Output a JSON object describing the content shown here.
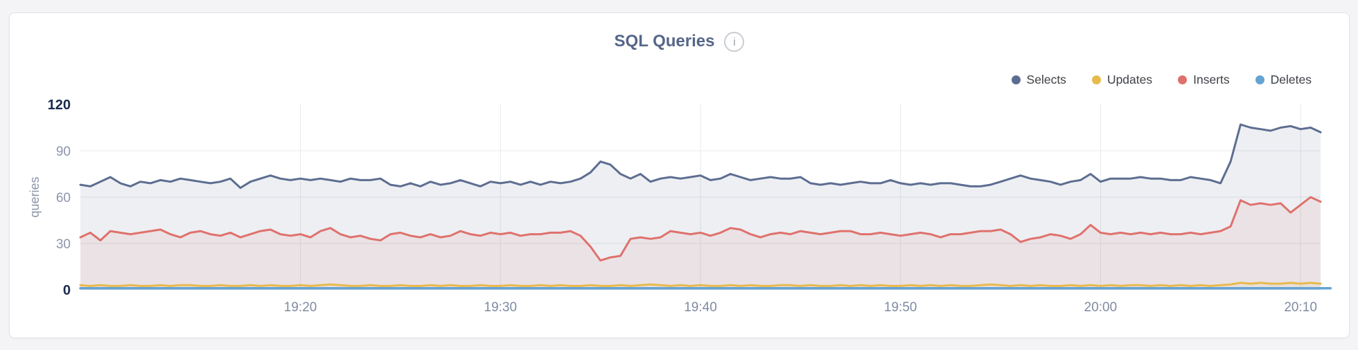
{
  "panel": {
    "title": "SQL Queries",
    "info_glyph": "i"
  },
  "legend": {
    "position": "top-right",
    "items": [
      {
        "label": "Selects",
        "color": "#5c6d90"
      },
      {
        "label": "Updates",
        "color": "#e7ba4e"
      },
      {
        "label": "Inserts",
        "color": "#df716c"
      },
      {
        "label": "Deletes",
        "color": "#65a3d3"
      }
    ]
  },
  "chart_data": {
    "type": "area",
    "title": "SQL Queries",
    "xlabel": "",
    "ylabel": "queries",
    "ylim": [
      0,
      120
    ],
    "y_ticks": [
      0,
      30,
      60,
      90,
      120
    ],
    "grid": true,
    "legend_position": "top-right",
    "x_start": "19:09",
    "x_end": "20:11",
    "x_interval_seconds": 30,
    "x_ticks": [
      "19:20",
      "19:30",
      "19:40",
      "19:50",
      "20:00",
      "20:10"
    ],
    "series": [
      {
        "name": "Selects",
        "color": "#5c6d90",
        "fill": "rgba(92,109,144,0.11)",
        "width": 3,
        "values": [
          68,
          67,
          70,
          73,
          69,
          67,
          70,
          69,
          71,
          70,
          72,
          71,
          70,
          69,
          70,
          72,
          66,
          70,
          72,
          74,
          72,
          71,
          72,
          71,
          72,
          71,
          70,
          72,
          71,
          71,
          72,
          68,
          67,
          69,
          67,
          70,
          68,
          69,
          71,
          69,
          67,
          70,
          69,
          70,
          68,
          70,
          68,
          70,
          69,
          70,
          72,
          76,
          83,
          81,
          75,
          72,
          75,
          70,
          72,
          73,
          72,
          73,
          74,
          71,
          72,
          75,
          73,
          71,
          72,
          73,
          72,
          72,
          73,
          69,
          68,
          69,
          68,
          69,
          70,
          69,
          69,
          71,
          69,
          68,
          69,
          68,
          69,
          69,
          68,
          67,
          67,
          68,
          70,
          72,
          74,
          72,
          71,
          70,
          68,
          70,
          71,
          75,
          70,
          72,
          72,
          72,
          73,
          72,
          72,
          71,
          71,
          73,
          72,
          71,
          69,
          83,
          107,
          105,
          104,
          103,
          105,
          106,
          104,
          105,
          102
        ]
      },
      {
        "name": "Inserts",
        "color": "#df716c",
        "fill": "rgba(223,113,108,0.10)",
        "width": 3,
        "values": [
          34,
          37,
          32,
          38,
          37,
          36,
          37,
          38,
          39,
          36,
          34,
          37,
          38,
          36,
          35,
          37,
          34,
          36,
          38,
          39,
          36,
          35,
          36,
          34,
          38,
          40,
          36,
          34,
          35,
          33,
          32,
          36,
          37,
          35,
          34,
          36,
          34,
          35,
          38,
          36,
          35,
          37,
          36,
          37,
          35,
          36,
          36,
          37,
          37,
          38,
          35,
          28,
          19,
          21,
          22,
          33,
          34,
          33,
          34,
          38,
          37,
          36,
          37,
          35,
          37,
          40,
          39,
          36,
          34,
          36,
          37,
          36,
          38,
          37,
          36,
          37,
          38,
          38,
          36,
          36,
          37,
          36,
          35,
          36,
          37,
          36,
          34,
          36,
          36,
          37,
          38,
          38,
          39,
          36,
          31,
          33,
          34,
          36,
          35,
          33,
          36,
          42,
          37,
          36,
          37,
          36,
          37,
          36,
          37,
          36,
          36,
          37,
          36,
          37,
          38,
          41,
          58,
          55,
          56,
          55,
          56,
          50,
          55,
          60,
          57
        ]
      },
      {
        "name": "Updates",
        "color": "#e7ba4e",
        "fill": "rgba(231,186,78,0.08)",
        "width": 3,
        "values": [
          3,
          2.5,
          3,
          2.5,
          2.5,
          3,
          2.5,
          2.5,
          3,
          2.5,
          3,
          3,
          2.5,
          2.5,
          3,
          2.5,
          2.5,
          3,
          2.5,
          3,
          2.5,
          2.5,
          3,
          2.5,
          3,
          3.5,
          3,
          2.5,
          2.5,
          3,
          2.5,
          2.5,
          3,
          2.5,
          2.5,
          3,
          2.5,
          3,
          2.5,
          2.5,
          3,
          2.5,
          2.5,
          3,
          2.5,
          2.5,
          3,
          2.5,
          3,
          2.5,
          2.5,
          3,
          2.5,
          2.5,
          3,
          2.5,
          3,
          3.5,
          3,
          2.5,
          3,
          2.5,
          3,
          2.5,
          2.5,
          3,
          2.5,
          3,
          2.5,
          2.5,
          3,
          3,
          2.5,
          3,
          2.5,
          2.5,
          3,
          2.5,
          3,
          2.5,
          3,
          2.5,
          2.5,
          3,
          2.5,
          3,
          2.5,
          3,
          2.5,
          2.5,
          3,
          3.5,
          3,
          2.5,
          3,
          2.5,
          3,
          2.5,
          2.5,
          3,
          2.5,
          3,
          2.5,
          3,
          2.5,
          3,
          3,
          2.5,
          3,
          2.5,
          3,
          2.5,
          3,
          2.5,
          3,
          3.5,
          4.5,
          4,
          4.5,
          4,
          4,
          4.5,
          4,
          4.5,
          4
        ]
      },
      {
        "name": "Deletes",
        "color": "#65a3d3",
        "fill": "rgba(101,163,211,0.15)",
        "width": 3.5,
        "values": [
          1,
          1,
          1,
          1,
          1,
          1,
          1,
          1,
          1,
          1,
          1,
          1,
          1,
          1,
          1,
          1,
          1,
          1,
          1,
          1,
          1,
          1,
          1,
          1,
          1,
          1,
          1,
          1,
          1,
          1,
          1,
          1,
          1,
          1,
          1,
          1,
          1,
          1,
          1,
          1,
          1,
          1,
          1,
          1,
          1,
          1,
          1,
          1,
          1,
          1,
          1,
          1,
          1,
          1,
          1,
          1,
          1,
          1,
          1,
          1,
          1,
          1,
          1,
          1,
          1,
          1,
          1,
          1,
          1,
          1,
          1,
          1,
          1,
          1,
          1,
          1,
          1,
          1,
          1,
          1,
          1,
          1,
          1,
          1,
          1,
          1,
          1,
          1,
          1,
          1,
          1,
          1,
          1,
          1,
          1,
          1,
          1,
          1,
          1,
          1,
          1,
          1,
          1,
          1,
          1,
          1,
          1,
          1,
          1,
          1,
          1,
          1,
          1,
          1,
          1,
          1,
          1,
          1,
          1,
          1,
          1,
          1,
          1,
          1,
          1,
          1
        ]
      }
    ]
  }
}
